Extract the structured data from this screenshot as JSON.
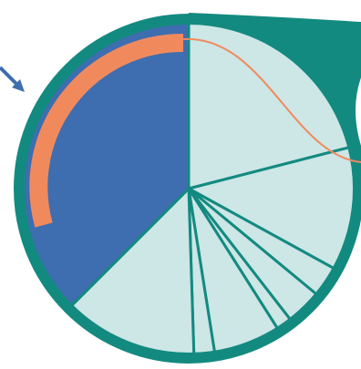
{
  "chart_data": {
    "type": "pie",
    "values": [
      21,
      12,
      3,
      3.5,
      1.5,
      6.5,
      2,
      13,
      37.5
    ],
    "colors": [
      "#cde6e6",
      "#cde6e6",
      "#cde6e6",
      "#cde6e6",
      "#cde6e6",
      "#cde6e6",
      "#cde6e6",
      "#cde6e6",
      "#3e6db0"
    ]
  }
}
